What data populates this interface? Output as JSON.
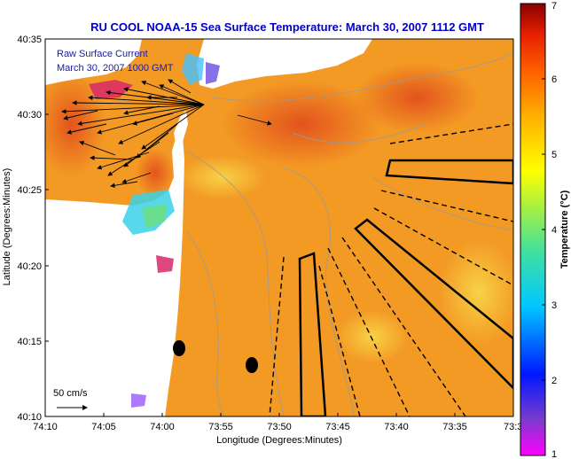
{
  "title": "RU COOL  NOAA-15  Sea Surface Temperature:  March 30, 2007 1112 GMT",
  "map": {
    "xlabel": "Longitude (Degrees:Minutes)",
    "ylabel": "Latitude (Degrees:Minutes)",
    "x_ticks": [
      "74:10",
      "74:05",
      "74:00",
      "73:55",
      "73:50",
      "73:45",
      "73:40",
      "73:35",
      "73:3"
    ],
    "y_ticks": [
      "40:35",
      "40:30",
      "40:25",
      "40:20",
      "40:15",
      "40:10"
    ],
    "overlay_label_1": "Raw Surface Current",
    "overlay_label_2": "March 30, 2007 1000 GMT",
    "scale_label": "50 cm/s"
  },
  "colorbar": {
    "label": "Temperature (°C)",
    "ticks": [
      "7",
      "6",
      "5",
      "4",
      "3",
      "2",
      "1"
    ],
    "range": [
      1,
      7
    ]
  },
  "colors": {
    "ocean": "#f39a24",
    "land": "#ffffff",
    "title": "#0000c8",
    "warm": "#d23a1c",
    "cool": "#f6d24a"
  }
}
